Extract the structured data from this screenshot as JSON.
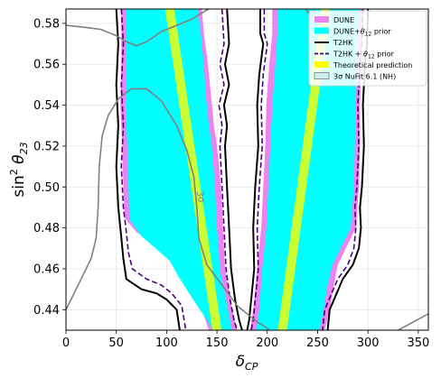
{
  "chart_data": {
    "type": "area",
    "xlabel": "δCP",
    "ylabel": "sin²θ23",
    "xlim": [
      0,
      360
    ],
    "ylim": [
      0.43,
      0.587
    ],
    "x_ticks": [
      0,
      50,
      100,
      150,
      200,
      250,
      300,
      350
    ],
    "y_ticks": [
      0.44,
      0.46,
      0.48,
      0.5,
      0.52,
      0.54,
      0.56,
      0.58
    ],
    "grid": true,
    "legend_position": "top-right",
    "colors": {
      "dune": "#ee82ee",
      "dune_prior": "#00ffff",
      "t2hk": "#000000",
      "t2hk_prior": "#4b0082",
      "theory": "#ccff33",
      "nufit": "#808080"
    },
    "legend": [
      {
        "label": "DUNE",
        "style": "band",
        "color": "#ee82ee"
      },
      {
        "label": "DUNE+θ12 prior",
        "style": "band",
        "color": "#00ffff"
      },
      {
        "label": "T2HK",
        "style": "solid",
        "color": "#000000"
      },
      {
        "label": "T2HK + θ12 prior",
        "style": "dashed",
        "color": "#4b0082"
      },
      {
        "label": "Theoretical prediction",
        "style": "band",
        "color": "#ffff00"
      },
      {
        "label": "3σ NuFit 6.1 (NH)",
        "style": "box",
        "color": "#cfefef"
      }
    ],
    "contour_labels": [
      {
        "text": "3σ",
        "x": 131,
        "y": 0.495
      },
      {
        "text": "3σ",
        "x": 241,
        "y": 0.584
      }
    ],
    "dune_left": {
      "outer": [
        [
          55,
          0.587
        ],
        [
          55,
          0.56
        ],
        [
          54,
          0.54
        ],
        [
          56,
          0.52
        ],
        [
          57,
          0.5
        ],
        [
          58,
          0.485
        ],
        [
          70,
          0.478
        ],
        [
          100,
          0.468
        ],
        [
          108,
          0.46
        ],
        [
          120,
          0.452
        ],
        [
          135,
          0.44
        ],
        [
          142,
          0.43
        ],
        [
          170,
          0.43
        ],
        [
          165,
          0.44
        ],
        [
          158,
          0.46
        ],
        [
          156,
          0.48
        ],
        [
          154,
          0.5
        ],
        [
          150,
          0.52
        ],
        [
          147,
          0.53
        ],
        [
          144,
          0.545
        ],
        [
          141,
          0.56
        ],
        [
          137,
          0.575
        ],
        [
          135,
          0.587
        ]
      ],
      "inner": [
        [
          60,
          0.587
        ],
        [
          60,
          0.56
        ],
        [
          59,
          0.54
        ],
        [
          61,
          0.52
        ],
        [
          62,
          0.5
        ],
        [
          63,
          0.484
        ],
        [
          75,
          0.476
        ],
        [
          103,
          0.464
        ],
        [
          112,
          0.456
        ],
        [
          125,
          0.446
        ],
        [
          140,
          0.435
        ],
        [
          146,
          0.43
        ],
        [
          165,
          0.43
        ],
        [
          161,
          0.44
        ],
        [
          153,
          0.46
        ],
        [
          150,
          0.48
        ],
        [
          148,
          0.5
        ],
        [
          145,
          0.52
        ],
        [
          142,
          0.53
        ],
        [
          139,
          0.545
        ],
        [
          137,
          0.56
        ],
        [
          134,
          0.575
        ],
        [
          131,
          0.587
        ]
      ]
    },
    "dune_right": {
      "outer": [
        [
          205,
          0.587
        ],
        [
          205,
          0.575
        ],
        [
          202,
          0.56
        ],
        [
          199,
          0.54
        ],
        [
          198,
          0.52
        ],
        [
          196,
          0.5
        ],
        [
          194,
          0.48
        ],
        [
          190,
          0.46
        ],
        [
          186,
          0.44
        ],
        [
          183,
          0.43
        ],
        [
          257,
          0.43
        ],
        [
          262,
          0.44
        ],
        [
          266,
          0.452
        ],
        [
          270,
          0.462
        ],
        [
          283,
          0.475
        ],
        [
          288,
          0.48
        ],
        [
          291,
          0.5
        ],
        [
          292,
          0.52
        ],
        [
          292,
          0.54
        ],
        [
          293,
          0.56
        ],
        [
          295,
          0.587
        ]
      ],
      "inner": [
        [
          210,
          0.587
        ],
        [
          210,
          0.575
        ],
        [
          208,
          0.56
        ],
        [
          205,
          0.54
        ],
        [
          203,
          0.52
        ],
        [
          201,
          0.5
        ],
        [
          199,
          0.48
        ],
        [
          195,
          0.46
        ],
        [
          192,
          0.44
        ],
        [
          189,
          0.43
        ],
        [
          252,
          0.43
        ],
        [
          256,
          0.44
        ],
        [
          260,
          0.452
        ],
        [
          265,
          0.462
        ],
        [
          278,
          0.475
        ],
        [
          283,
          0.48
        ],
        [
          286,
          0.5
        ],
        [
          287,
          0.52
        ],
        [
          288,
          0.54
        ],
        [
          289,
          0.56
        ],
        [
          291,
          0.587
        ]
      ]
    },
    "t2hk": [
      [
        [
          50,
          0.587
        ],
        [
          52,
          0.57
        ],
        [
          50,
          0.55
        ],
        [
          52,
          0.53
        ],
        [
          50,
          0.51
        ],
        [
          52,
          0.49
        ],
        [
          55,
          0.475
        ],
        [
          57,
          0.465
        ],
        [
          60,
          0.455
        ],
        [
          75,
          0.45
        ],
        [
          90,
          0.448
        ],
        [
          100,
          0.445
        ],
        [
          110,
          0.44
        ],
        [
          113,
          0.43
        ]
      ],
      [
        [
          160,
          0.587
        ],
        [
          162,
          0.57
        ],
        [
          158,
          0.56
        ],
        [
          162,
          0.55
        ],
        [
          157,
          0.54
        ],
        [
          160,
          0.53
        ],
        [
          158,
          0.52
        ],
        [
          160,
          0.5
        ],
        [
          162,
          0.48
        ],
        [
          164,
          0.46
        ],
        [
          168,
          0.445
        ],
        [
          172,
          0.435
        ],
        [
          175,
          0.43
        ]
      ],
      [
        [
          193,
          0.587
        ],
        [
          193,
          0.575
        ],
        [
          196,
          0.57
        ],
        [
          192,
          0.555
        ],
        [
          190,
          0.54
        ],
        [
          191,
          0.52
        ],
        [
          188,
          0.5
        ],
        [
          186,
          0.48
        ],
        [
          187,
          0.46
        ],
        [
          184,
          0.445
        ],
        [
          182,
          0.435
        ],
        [
          180,
          0.43
        ]
      ],
      [
        [
          300,
          0.587
        ],
        [
          299,
          0.57
        ],
        [
          297,
          0.56
        ],
        [
          295,
          0.54
        ],
        [
          296,
          0.52
        ],
        [
          294,
          0.5
        ],
        [
          292,
          0.49
        ],
        [
          293,
          0.48
        ],
        [
          291,
          0.47
        ],
        [
          285,
          0.462
        ],
        [
          275,
          0.455
        ],
        [
          262,
          0.44
        ],
        [
          260,
          0.43
        ]
      ]
    ],
    "t2hk_prior": [
      [
        [
          55,
          0.587
        ],
        [
          57,
          0.57
        ],
        [
          55,
          0.55
        ],
        [
          57,
          0.53
        ],
        [
          55,
          0.51
        ],
        [
          57,
          0.49
        ],
        [
          60,
          0.478
        ],
        [
          62,
          0.468
        ],
        [
          66,
          0.46
        ],
        [
          80,
          0.455
        ],
        [
          95,
          0.452
        ],
        [
          105,
          0.448
        ],
        [
          115,
          0.442
        ],
        [
          119,
          0.43
        ]
      ],
      [
        [
          155,
          0.587
        ],
        [
          157,
          0.57
        ],
        [
          153,
          0.56
        ],
        [
          157,
          0.55
        ],
        [
          152,
          0.54
        ],
        [
          155,
          0.53
        ],
        [
          153,
          0.52
        ],
        [
          155,
          0.5
        ],
        [
          157,
          0.48
        ],
        [
          159,
          0.46
        ],
        [
          163,
          0.445
        ],
        [
          167,
          0.435
        ],
        [
          170,
          0.43
        ]
      ],
      [
        [
          197,
          0.587
        ],
        [
          197,
          0.575
        ],
        [
          200,
          0.57
        ],
        [
          196,
          0.555
        ],
        [
          194,
          0.54
        ],
        [
          195,
          0.52
        ],
        [
          192,
          0.5
        ],
        [
          190,
          0.48
        ],
        [
          191,
          0.46
        ],
        [
          188,
          0.445
        ],
        [
          186,
          0.435
        ],
        [
          184,
          0.43
        ]
      ],
      [
        [
          295,
          0.587
        ],
        [
          294,
          0.57
        ],
        [
          292,
          0.56
        ],
        [
          290,
          0.54
        ],
        [
          291,
          0.52
        ],
        [
          289,
          0.5
        ],
        [
          287,
          0.49
        ],
        [
          288,
          0.48
        ],
        [
          286,
          0.47
        ],
        [
          280,
          0.462
        ],
        [
          270,
          0.455
        ],
        [
          257,
          0.44
        ],
        [
          255,
          0.43
        ]
      ]
    ],
    "theory": [
      {
        "x_top": 103,
        "x_bottom": 150,
        "width": 5
      },
      {
        "x_top": 258,
        "x_bottom": 215,
        "width": 6
      }
    ],
    "nufit": [
      [
        [
          0,
          0.44
        ],
        [
          5,
          0.445
        ],
        [
          15,
          0.455
        ],
        [
          25,
          0.465
        ],
        [
          30,
          0.475
        ],
        [
          32,
          0.49
        ],
        [
          33,
          0.51
        ],
        [
          36,
          0.525
        ],
        [
          42,
          0.535
        ],
        [
          52,
          0.543
        ],
        [
          65,
          0.548
        ],
        [
          80,
          0.548
        ],
        [
          95,
          0.542
        ],
        [
          110,
          0.53
        ],
        [
          120,
          0.518
        ],
        [
          127,
          0.505
        ],
        [
          130,
          0.49
        ],
        [
          132,
          0.475
        ],
        [
          140,
          0.462
        ],
        [
          155,
          0.452
        ],
        [
          170,
          0.442
        ],
        [
          180,
          0.438
        ],
        [
          190,
          0.434
        ],
        [
          200,
          0.431
        ],
        [
          202,
          0.43
        ]
      ],
      [
        [
          0,
          0.579
        ],
        [
          20,
          0.578
        ],
        [
          35,
          0.577
        ],
        [
          50,
          0.574
        ],
        [
          60,
          0.571
        ],
        [
          70,
          0.569
        ],
        [
          80,
          0.571
        ],
        [
          95,
          0.576
        ],
        [
          110,
          0.579
        ],
        [
          125,
          0.582
        ],
        [
          138,
          0.586
        ],
        [
          142,
          0.587
        ]
      ],
      [
        [
          330,
          0.43
        ],
        [
          345,
          0.434
        ],
        [
          360,
          0.438
        ]
      ],
      [
        [
          238,
          0.587
        ],
        [
          244,
          0.583
        ]
      ]
    ]
  }
}
